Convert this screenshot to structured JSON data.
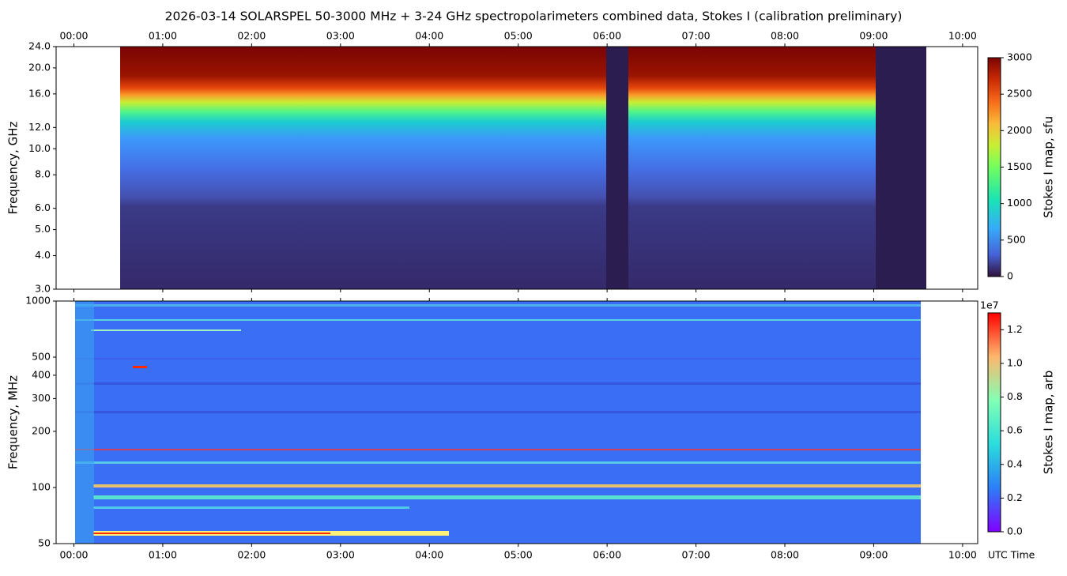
{
  "title": "2026-03-14  SOLARSPEL  50-3000 MHz  +  3-24 GHz  spectropolarimeters combined data,  Stokes I  (calibration preliminary)",
  "chart_data": [
    {
      "type": "spectrogram",
      "ylabel": "Frequency, GHz",
      "ylog": true,
      "ylim": [
        3,
        24
      ],
      "yticks": [
        {
          "value": 3,
          "label": "3.0"
        },
        {
          "value": 4,
          "label": "4.0"
        },
        {
          "value": 5,
          "label": "5.0"
        },
        {
          "value": 6,
          "label": "6.0"
        },
        {
          "value": 8,
          "label": "8.0"
        },
        {
          "value": 10,
          "label": "10.0"
        },
        {
          "value": 12,
          "label": "12.0"
        },
        {
          "value": 16,
          "label": "16.0"
        },
        {
          "value": 20,
          "label": "20.0"
        },
        {
          "value": 24,
          "label": "24.0"
        }
      ],
      "xlim": [
        -0.2,
        10.17
      ],
      "xticks": [
        {
          "value": 0,
          "label": "00:00"
        },
        {
          "value": 1,
          "label": "01:00"
        },
        {
          "value": 2,
          "label": "02:00"
        },
        {
          "value": 3,
          "label": "03:00"
        },
        {
          "value": 4,
          "label": "04:00"
        },
        {
          "value": 5,
          "label": "05:00"
        },
        {
          "value": 6,
          "label": "06:00"
        },
        {
          "value": 7,
          "label": "07:00"
        },
        {
          "value": 8,
          "label": "08:00"
        },
        {
          "value": 9,
          "label": "09:00"
        },
        {
          "value": 10,
          "label": "10:00"
        }
      ],
      "colormap": "turbo",
      "colorbar": {
        "label": "Stokes I map, sfu",
        "lim": [
          0,
          3000
        ],
        "ticks": [
          0,
          500,
          1000,
          1500,
          2000,
          2500,
          3000
        ]
      }
    },
    {
      "type": "spectrogram",
      "ylabel": "Frequency, MHz",
      "xlabel": "UTC Time",
      "ylog": true,
      "ylim": [
        50,
        1000
      ],
      "yticks": [
        50,
        100,
        200,
        300,
        400,
        500,
        1000
      ],
      "xlim": [
        -0.2,
        10.17
      ],
      "xticks": [
        {
          "value": 0,
          "label": "00:00"
        },
        {
          "value": 1,
          "label": "01:00"
        },
        {
          "value": 2,
          "label": "02:00"
        },
        {
          "value": 3,
          "label": "03:00"
        },
        {
          "value": 4,
          "label": "04:00"
        },
        {
          "value": 5,
          "label": "05:00"
        },
        {
          "value": 6,
          "label": "06:00"
        },
        {
          "value": 7,
          "label": "07:00"
        },
        {
          "value": 8,
          "label": "08:00"
        },
        {
          "value": 9,
          "label": "09:00"
        },
        {
          "value": 10,
          "label": "10:00"
        }
      ],
      "colormap": "rainbow",
      "colorbar": {
        "label": "Stokes I map, arb",
        "offset_label": "1e7",
        "lim": [
          0,
          1.3
        ],
        "ticks": [
          {
            "value": 0,
            "label": "0.0"
          },
          {
            "value": 0.2,
            "label": "0.2"
          },
          {
            "value": 0.4,
            "label": "0.4"
          },
          {
            "value": 0.6,
            "label": "0.6"
          },
          {
            "value": 0.8,
            "label": "0.8"
          },
          {
            "value": 1,
            "label": "1.0"
          },
          {
            "value": 1.2,
            "label": "1.2"
          }
        ]
      }
    }
  ]
}
